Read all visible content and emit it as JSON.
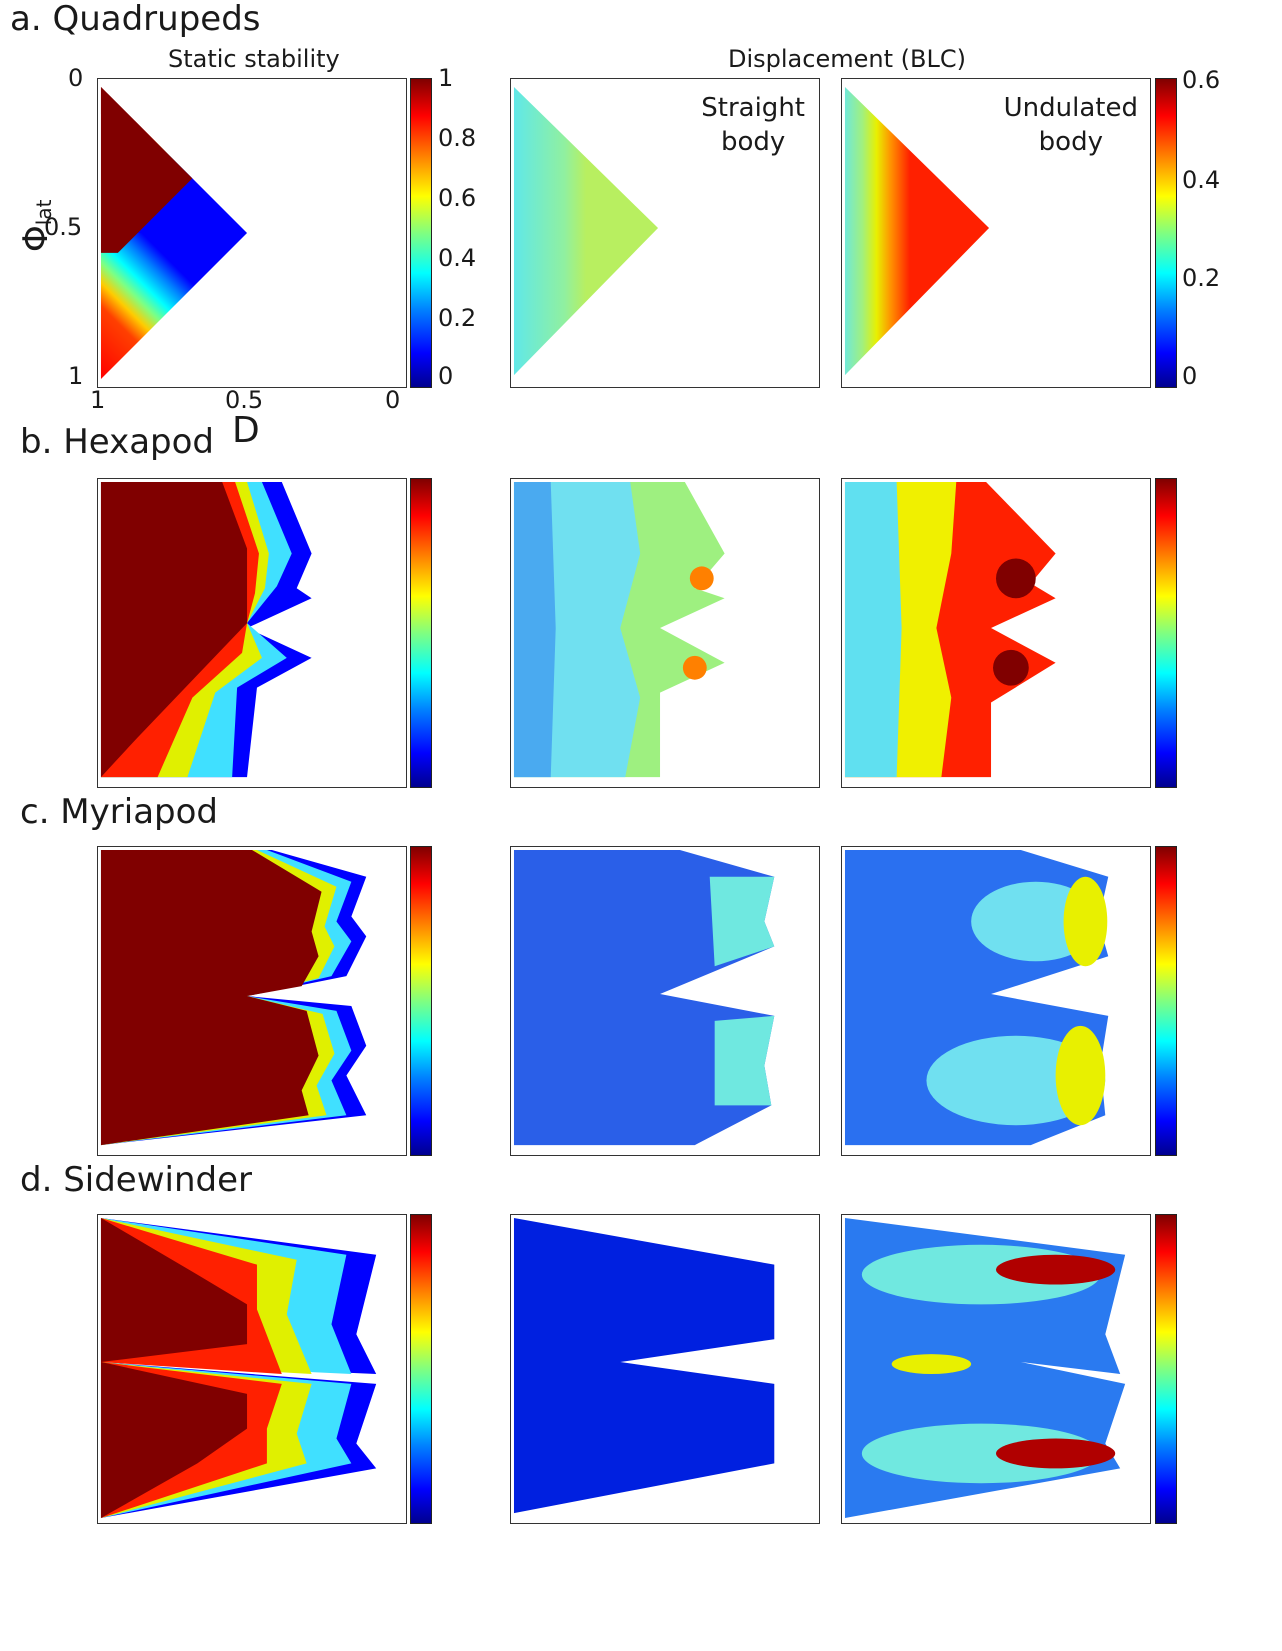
{
  "chart_data": [
    {
      "type": "heatmap",
      "row": "a",
      "label": "a. Quadrupeds",
      "column_title": "Static stability",
      "colorbar_ticks": [
        "1",
        "0.8",
        "0.6",
        "0.4",
        "0.2",
        "0"
      ],
      "xlabel": "D",
      "ylabel": "Φ",
      "ylabel_sub": "lat",
      "x_ticks": [
        "1",
        "0.5",
        "0"
      ],
      "y_ticks": [
        "0",
        "0.5",
        "1"
      ],
      "xlim": [
        1,
        0
      ],
      "ylim": [
        0,
        1
      ],
      "clim": [
        0,
        1
      ]
    },
    {
      "type": "heatmap",
      "row": "a",
      "column_title": "Displacement (BLC)",
      "inset": [
        "Straight",
        "body"
      ],
      "clim": [
        0,
        0.6
      ]
    },
    {
      "type": "heatmap",
      "row": "a",
      "inset": [
        "Undulated",
        "body"
      ],
      "colorbar_ticks": [
        "0.6",
        "0.4",
        "0.2",
        "0"
      ],
      "clim": [
        0,
        0.6
      ]
    },
    {
      "type": "heatmap",
      "row": "b",
      "label": "b. Hexapod"
    },
    {
      "type": "heatmap",
      "row": "c",
      "label": "c. Myriapod"
    },
    {
      "type": "heatmap",
      "row": "d",
      "label": "d. Sidewinder"
    }
  ],
  "colors": {
    "colormap": [
      "#00008f",
      "#0000ff",
      "#0080ff",
      "#00ffff",
      "#80ff80",
      "#ffff00",
      "#ff8000",
      "#ff0000",
      "#800000"
    ]
  }
}
